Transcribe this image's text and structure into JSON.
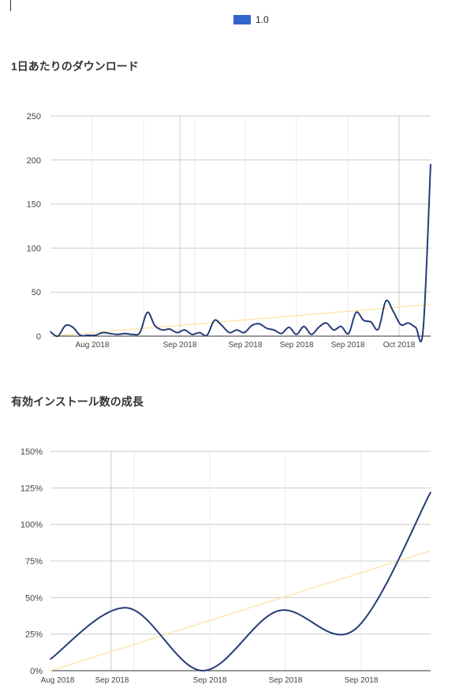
{
  "legend": {
    "label": "1.0",
    "color": "#3366cc"
  },
  "chart_data": [
    {
      "type": "line",
      "title": "1日あたりのダウンロード",
      "xlabel": "",
      "ylabel": "",
      "ylim": [
        0,
        250
      ],
      "y_ticks": [
        "0",
        "50",
        "100",
        "150",
        "200",
        "250"
      ],
      "x_tick_labels": [
        "Aug 2018",
        "Sep 2018",
        "Sep 2018",
        "Sep 2018",
        "Sep 2018",
        "Oct 2018"
      ],
      "grid": true,
      "series": [
        {
          "name": "1.0",
          "color": "#253c78",
          "values": [
            5,
            0,
            12,
            10,
            1,
            1,
            1,
            4,
            3,
            2,
            3,
            2,
            4,
            27,
            12,
            7,
            8,
            4,
            7,
            2,
            4,
            1,
            18,
            12,
            4,
            7,
            4,
            12,
            14,
            9,
            7,
            3,
            10,
            2,
            11,
            2,
            10,
            15,
            7,
            11,
            3,
            27,
            18,
            16,
            8,
            40,
            28,
            13,
            15,
            10,
            7,
            195
          ]
        }
      ],
      "trend": {
        "color": "#ffe2a0",
        "from": 0,
        "to": 36
      }
    },
    {
      "type": "line",
      "title": "有効インストール数の成長",
      "xlabel": "",
      "ylabel": "",
      "ylim": [
        0,
        150
      ],
      "y_ticks": [
        "0%",
        "25%",
        "50%",
        "75%",
        "100%",
        "125%",
        "150%"
      ],
      "x_tick_labels": [
        "Aug 2018",
        "Sep 2018",
        "Sep 2018",
        "Sep 2018",
        "Sep 2018"
      ],
      "grid": true,
      "series": [
        {
          "name": "1.0",
          "color": "#253c78",
          "values": [
            8,
            43,
            0,
            41,
            28,
            122
          ]
        }
      ],
      "trend": {
        "color": "#ffe2a0",
        "from": 0,
        "to": 82
      }
    }
  ]
}
